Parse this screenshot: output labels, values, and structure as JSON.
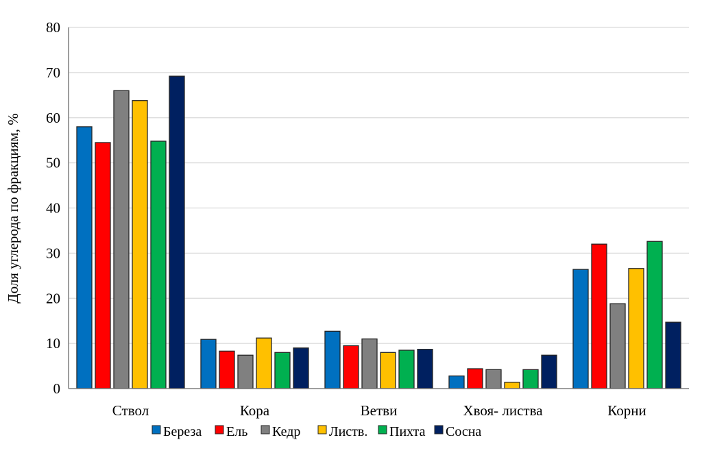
{
  "chart_data": {
    "type": "bar",
    "title": "",
    "xlabel": "",
    "ylabel": "Доля углерода  по фракциям, %",
    "ylim": [
      0,
      80
    ],
    "yticks": [
      0,
      10,
      20,
      30,
      40,
      50,
      60,
      70,
      80
    ],
    "grid": true,
    "legend_placement": "bottom",
    "categories": [
      "Ствол",
      "Кора",
      "Ветви",
      "Хвоя- листва",
      "Корни"
    ],
    "series": [
      {
        "name": "Береза",
        "color": "#0070c0",
        "values": [
          58.0,
          10.9,
          12.7,
          2.8,
          26.4
        ]
      },
      {
        "name": "Ель",
        "color": "#ff0000",
        "values": [
          54.5,
          8.3,
          9.5,
          4.4,
          32.0
        ]
      },
      {
        "name": "Кедр",
        "color": "#808080",
        "values": [
          66.0,
          7.4,
          11.0,
          4.2,
          18.8
        ]
      },
      {
        "name": "Листв.",
        "color": "#ffc000",
        "values": [
          63.8,
          11.2,
          8.0,
          1.4,
          26.6
        ]
      },
      {
        "name": "Пихта",
        "color": "#00b050",
        "values": [
          54.8,
          8.0,
          8.5,
          4.2,
          32.6
        ]
      },
      {
        "name": "Сосна",
        "color": "#002060",
        "values": [
          69.2,
          9.0,
          8.7,
          7.4,
          14.7
        ]
      }
    ]
  }
}
